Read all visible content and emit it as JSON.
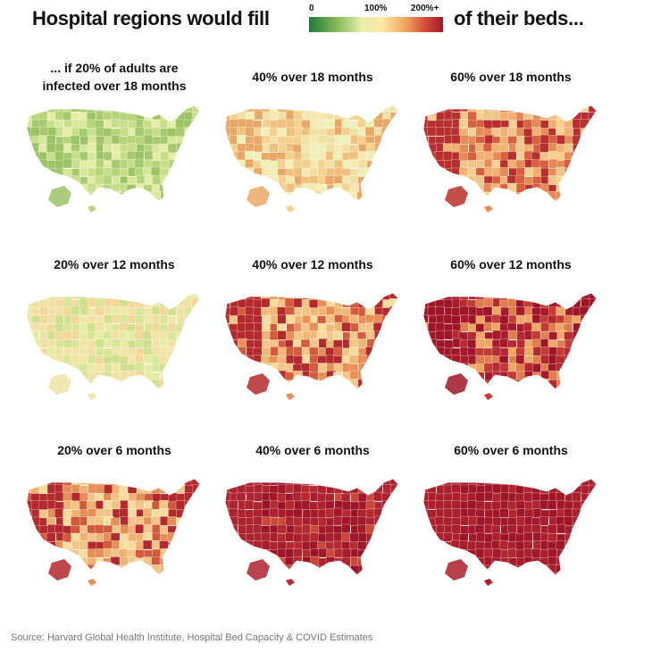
{
  "header": {
    "title_left": "Hospital regions would fill",
    "title_right": "of their beds...",
    "legend": {
      "min_label": "0",
      "mid_label": "100%",
      "max_label": "200%+"
    }
  },
  "panels": [
    {
      "title_line1": "... if 20% of adults are",
      "title_line2": "infected over 18 months",
      "fill_level": 0.3,
      "palette": [
        "#c9de8a",
        "#b6d47a",
        "#d9e79a",
        "#a6c96f",
        "#e4eca5",
        "#9cc366"
      ]
    },
    {
      "title_line1": "40% over 18 months",
      "title_line2": "",
      "fill_level": 0.55,
      "palette": [
        "#f2e1a6",
        "#f5d18f",
        "#eef0b7",
        "#f0c07d",
        "#f7e7b0",
        "#e8a868"
      ]
    },
    {
      "title_line1": "60% over 18 months",
      "title_line2": "",
      "fill_level": 0.75,
      "palette": [
        "#f2b072",
        "#e68a57",
        "#f7d08f",
        "#d6603f",
        "#efc58a",
        "#b8302e"
      ]
    },
    {
      "title_line1": "20% over 12 months",
      "title_line2": "",
      "fill_level": 0.4,
      "palette": [
        "#e6eca5",
        "#f2e5a8",
        "#d8e69a",
        "#f4d79a",
        "#cfe08e",
        "#f0e2a6"
      ]
    },
    {
      "title_line1": "40% over 12 months",
      "title_line2": "",
      "fill_level": 0.7,
      "palette": [
        "#f3c589",
        "#e98f58",
        "#f6dc9c",
        "#d35c3d",
        "#f0b877",
        "#b42a2c"
      ]
    },
    {
      "title_line1": "60% over 12 months",
      "title_line2": "",
      "fill_level": 0.88,
      "palette": [
        "#a8192c",
        "#c23c33",
        "#e07e50",
        "#b52a2f",
        "#f0a766",
        "#9e1528"
      ]
    },
    {
      "title_line1": "20% over 6 months",
      "title_line2": "",
      "fill_level": 0.72,
      "palette": [
        "#f2c488",
        "#e58e57",
        "#f7dc9e",
        "#cf5a3c",
        "#eeb373",
        "#b3292d"
      ]
    },
    {
      "title_line1": "40% over 6 months",
      "title_line2": "",
      "fill_level": 0.95,
      "palette": [
        "#a3172a",
        "#b42a2e",
        "#9c1428",
        "#c9483a",
        "#a81c2c",
        "#ad2330"
      ]
    },
    {
      "title_line1": "60% over 6 months",
      "title_line2": "",
      "fill_level": 0.98,
      "palette": [
        "#a3172a",
        "#a81c2c",
        "#9e1528",
        "#b12530",
        "#a3172a",
        "#ab1f2d"
      ]
    }
  ],
  "source": "Source: Harvard Global Health Institute, Hospital Bed Capacity & COVID Estimates"
}
